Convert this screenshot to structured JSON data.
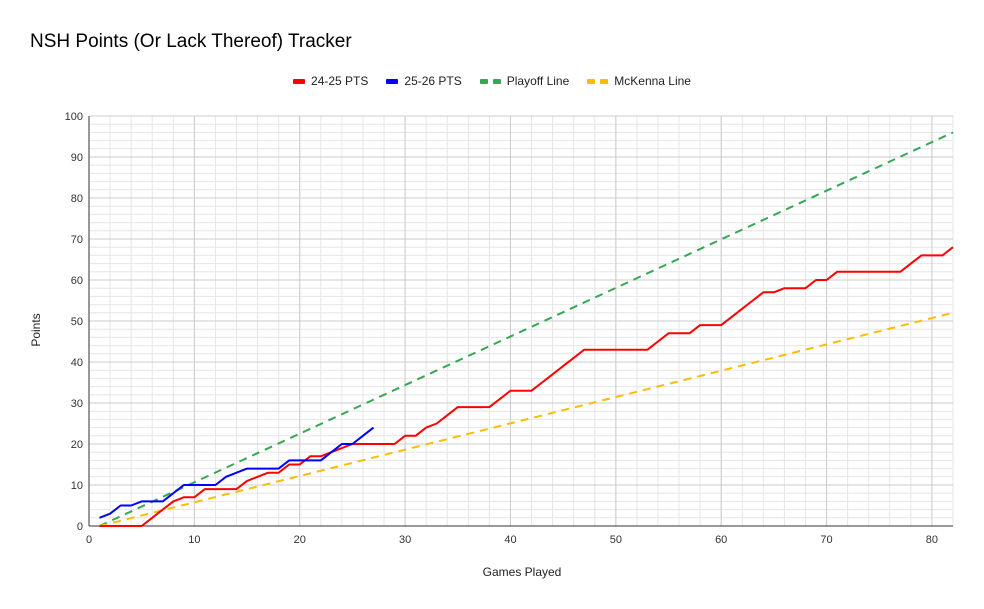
{
  "chart_data": {
    "type": "line",
    "title": "NSH Points (Or Lack Thereof) Tracker",
    "xlabel": "Games Played",
    "ylabel": "Points",
    "xlim": [
      0,
      82
    ],
    "ylim": [
      0,
      100
    ],
    "x_ticks": [
      0,
      10,
      20,
      30,
      40,
      50,
      60,
      70,
      80
    ],
    "y_ticks": [
      0,
      10,
      20,
      30,
      40,
      50,
      60,
      70,
      80,
      90,
      100
    ],
    "grid": true,
    "legend_position": "top",
    "series": [
      {
        "name": "24-25 PTS",
        "color": "#ff0000",
        "style": "solid",
        "x": [
          1,
          2,
          3,
          4,
          5,
          6,
          7,
          8,
          9,
          10,
          11,
          12,
          13,
          14,
          15,
          16,
          17,
          18,
          19,
          20,
          21,
          22,
          23,
          24,
          25,
          26,
          27,
          28,
          29,
          30,
          31,
          32,
          33,
          34,
          35,
          36,
          37,
          38,
          39,
          40,
          41,
          42,
          43,
          44,
          45,
          46,
          47,
          48,
          49,
          50,
          51,
          52,
          53,
          54,
          55,
          56,
          57,
          58,
          59,
          60,
          61,
          62,
          63,
          64,
          65,
          66,
          67,
          68,
          69,
          70,
          71,
          72,
          73,
          74,
          75,
          76,
          77,
          78,
          79,
          80,
          81,
          82
        ],
        "values": [
          0,
          0,
          0,
          0,
          0,
          2,
          4,
          6,
          7,
          7,
          9,
          9,
          9,
          9,
          11,
          12,
          13,
          13,
          15,
          15,
          17,
          17,
          18,
          19,
          20,
          20,
          20,
          20,
          20,
          22,
          22,
          24,
          25,
          27,
          29,
          29,
          29,
          29,
          31,
          33,
          33,
          33,
          35,
          37,
          39,
          41,
          43,
          43,
          43,
          43,
          43,
          43,
          43,
          45,
          47,
          47,
          47,
          49,
          49,
          49,
          51,
          53,
          55,
          57,
          57,
          58,
          58,
          58,
          60,
          60,
          62,
          62,
          62,
          62,
          62,
          62,
          62,
          64,
          66,
          66,
          66,
          68
        ]
      },
      {
        "name": "25-26 PTS",
        "color": "#0000ff",
        "style": "solid",
        "x": [
          1,
          2,
          3,
          4,
          5,
          6,
          7,
          8,
          9,
          10,
          11,
          12,
          13,
          14,
          15,
          16,
          17,
          18,
          19,
          20,
          21,
          22,
          23,
          24,
          25,
          26,
          27
        ],
        "values": [
          2,
          3,
          5,
          5,
          6,
          6,
          6,
          8,
          10,
          10,
          10,
          10,
          12,
          13,
          14,
          14,
          14,
          14,
          16,
          16,
          16,
          16,
          18,
          20,
          20,
          22,
          24
        ]
      },
      {
        "name": "Playoff Line",
        "color": "#34a853",
        "style": "dashed",
        "x": [
          1,
          82
        ],
        "values": [
          0,
          96
        ]
      },
      {
        "name": "McKenna Line",
        "color": "#fbbc04",
        "style": "dashed",
        "x": [
          1,
          82
        ],
        "values": [
          0,
          52
        ]
      }
    ]
  }
}
